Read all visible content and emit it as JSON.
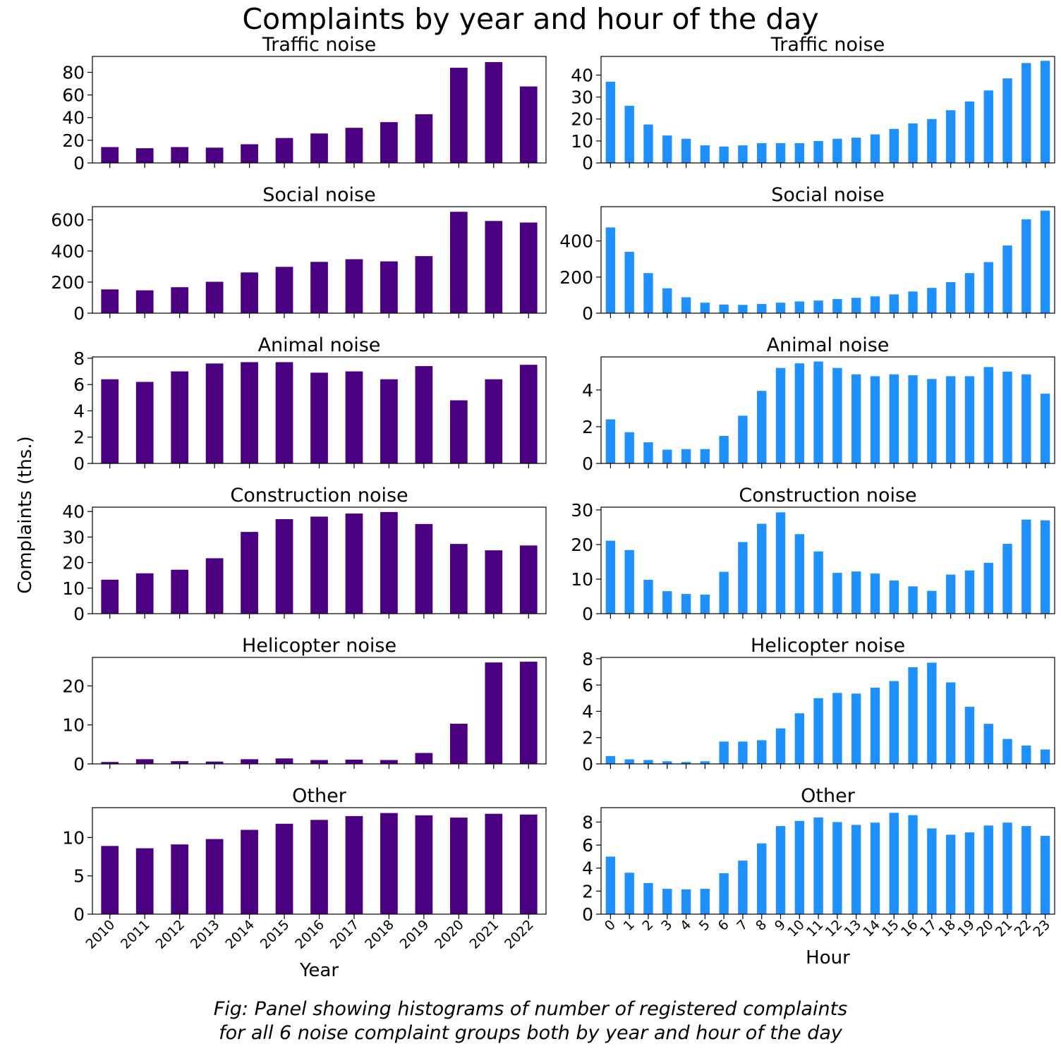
{
  "title": "Complaints by year and hour of the day",
  "ylabel": "Complaints (ths.)",
  "caption": {
    "line1": "Fig: Panel showing histograms of number of registered complaints",
    "line2": "for all 6 noise complaint groups both by year and hour of the day"
  },
  "colors": {
    "year": "#4b0082",
    "hour": "#1e90ff"
  },
  "chart_data": [
    {
      "type": "bar",
      "title": "Traffic noise",
      "column": "year",
      "ylim": [
        0,
        94
      ],
      "yticks": [
        0,
        20,
        40,
        60,
        80
      ],
      "categories": [
        "2010",
        "2011",
        "2012",
        "2013",
        "2014",
        "2015",
        "2016",
        "2017",
        "2018",
        "2019",
        "2020",
        "2021",
        "2022"
      ],
      "values": [
        14,
        13,
        14,
        13.5,
        16.5,
        22,
        26,
        31,
        36,
        43,
        84,
        89,
        67.5
      ]
    },
    {
      "type": "bar",
      "title": "Traffic noise",
      "column": "hour",
      "ylim": [
        0,
        48.5
      ],
      "yticks": [
        0,
        10,
        20,
        30,
        40
      ],
      "categories": [
        "0",
        "1",
        "2",
        "3",
        "4",
        "5",
        "6",
        "7",
        "8",
        "9",
        "10",
        "11",
        "12",
        "13",
        "14",
        "15",
        "16",
        "17",
        "18",
        "19",
        "20",
        "21",
        "22",
        "23"
      ],
      "values": [
        37,
        26,
        17.5,
        12.5,
        11,
        8,
        7.5,
        8,
        9,
        9,
        9,
        10,
        11,
        11.5,
        13,
        15.5,
        18,
        20,
        24,
        28,
        33,
        38.5,
        45.5,
        46.5
      ]
    },
    {
      "type": "bar",
      "title": "Social noise",
      "column": "year",
      "ylim": [
        0,
        685
      ],
      "yticks": [
        0,
        200,
        400,
        600
      ],
      "categories": [
        "2010",
        "2011",
        "2012",
        "2013",
        "2014",
        "2015",
        "2016",
        "2017",
        "2018",
        "2019",
        "2020",
        "2021",
        "2022"
      ],
      "values": [
        153,
        147,
        167,
        202,
        262,
        298,
        330,
        347,
        333,
        367,
        652,
        593,
        583
      ]
    },
    {
      "type": "bar",
      "title": "Social noise",
      "column": "hour",
      "ylim": [
        0,
        590
      ],
      "yticks": [
        0,
        200,
        400
      ],
      "categories": [
        "0",
        "1",
        "2",
        "3",
        "4",
        "5",
        "6",
        "7",
        "8",
        "9",
        "10",
        "11",
        "12",
        "13",
        "14",
        "15",
        "16",
        "17",
        "18",
        "19",
        "20",
        "21",
        "22",
        "23"
      ],
      "values": [
        475,
        340,
        222,
        138,
        88,
        58,
        48,
        46,
        51,
        58,
        65,
        70,
        78,
        85,
        93,
        104,
        120,
        140,
        172,
        222,
        283,
        375,
        520,
        568
      ]
    },
    {
      "type": "bar",
      "title": "Animal noise",
      "column": "year",
      "ylim": [
        0,
        8.1
      ],
      "yticks": [
        0,
        2,
        4,
        6,
        8
      ],
      "categories": [
        "2010",
        "2011",
        "2012",
        "2013",
        "2014",
        "2015",
        "2016",
        "2017",
        "2018",
        "2019",
        "2020",
        "2021",
        "2022"
      ],
      "values": [
        6.4,
        6.2,
        7.0,
        7.6,
        7.7,
        7.7,
        6.9,
        7.0,
        6.4,
        7.4,
        4.8,
        6.4,
        7.5
      ]
    },
    {
      "type": "bar",
      "title": "Animal noise",
      "column": "hour",
      "ylim": [
        0,
        5.8
      ],
      "yticks": [
        0,
        2,
        4
      ],
      "categories": [
        "0",
        "1",
        "2",
        "3",
        "4",
        "5",
        "6",
        "7",
        "8",
        "9",
        "10",
        "11",
        "12",
        "13",
        "14",
        "15",
        "16",
        "17",
        "18",
        "19",
        "20",
        "21",
        "22",
        "23"
      ],
      "values": [
        2.4,
        1.7,
        1.15,
        0.75,
        0.78,
        0.78,
        1.5,
        2.6,
        3.95,
        5.2,
        5.45,
        5.55,
        5.2,
        4.85,
        4.75,
        4.85,
        4.8,
        4.6,
        4.75,
        4.75,
        5.25,
        5.0,
        4.85,
        3.8
      ]
    },
    {
      "type": "bar",
      "title": "Construction noise",
      "column": "year",
      "ylim": [
        0,
        41.7
      ],
      "yticks": [
        0,
        10,
        20,
        30,
        40
      ],
      "categories": [
        "2010",
        "2011",
        "2012",
        "2013",
        "2014",
        "2015",
        "2016",
        "2017",
        "2018",
        "2019",
        "2020",
        "2021",
        "2022"
      ],
      "values": [
        13.3,
        15.8,
        17.2,
        21.7,
        32,
        37,
        38,
        39.2,
        39.8,
        35.1,
        27.3,
        24.8,
        26.7
      ]
    },
    {
      "type": "bar",
      "title": "Construction noise",
      "column": "hour",
      "ylim": [
        0,
        30.8
      ],
      "yticks": [
        0,
        10,
        20,
        30
      ],
      "categories": [
        "0",
        "1",
        "2",
        "3",
        "4",
        "5",
        "6",
        "7",
        "8",
        "9",
        "10",
        "11",
        "12",
        "13",
        "14",
        "15",
        "16",
        "17",
        "18",
        "19",
        "20",
        "21",
        "22",
        "23"
      ],
      "values": [
        21.1,
        18.4,
        9.8,
        6.5,
        5.7,
        5.5,
        12.1,
        20.7,
        26,
        29.3,
        23,
        18,
        11.8,
        12.2,
        11.6,
        9.6,
        7.9,
        6.6,
        11.3,
        12.5,
        14.7,
        20.2,
        27.2,
        27
      ]
    },
    {
      "type": "bar",
      "title": "Helicopter noise",
      "column": "year",
      "ylim": [
        0,
        27.3
      ],
      "yticks": [
        0,
        10,
        20
      ],
      "categories": [
        "2010",
        "2011",
        "2012",
        "2013",
        "2014",
        "2015",
        "2016",
        "2017",
        "2018",
        "2019",
        "2020",
        "2021",
        "2022"
      ],
      "values": [
        0.5,
        1.2,
        0.7,
        0.6,
        1.2,
        1.4,
        1.0,
        1.1,
        1.0,
        2.8,
        10.3,
        26,
        26.2
      ]
    },
    {
      "type": "bar",
      "title": "Helicopter noise",
      "column": "hour",
      "ylim": [
        0,
        8.1
      ],
      "yticks": [
        0,
        2,
        4,
        6,
        8
      ],
      "categories": [
        "0",
        "1",
        "2",
        "3",
        "4",
        "5",
        "6",
        "7",
        "8",
        "9",
        "10",
        "11",
        "12",
        "13",
        "14",
        "15",
        "16",
        "17",
        "18",
        "19",
        "20",
        "21",
        "22",
        "23"
      ],
      "values": [
        0.6,
        0.35,
        0.3,
        0.2,
        0.15,
        0.2,
        1.7,
        1.7,
        1.8,
        2.7,
        3.85,
        5.0,
        5.4,
        5.35,
        5.8,
        6.3,
        7.35,
        7.7,
        6.2,
        4.35,
        3.05,
        1.9,
        1.4,
        1.1
      ]
    },
    {
      "type": "bar",
      "title": "Other",
      "column": "year",
      "ylim": [
        0,
        13.9
      ],
      "yticks": [
        0,
        5,
        10
      ],
      "categories": [
        "2010",
        "2011",
        "2012",
        "2013",
        "2014",
        "2015",
        "2016",
        "2017",
        "2018",
        "2019",
        "2020",
        "2021",
        "2022"
      ],
      "values": [
        8.9,
        8.6,
        9.1,
        9.8,
        11.0,
        11.8,
        12.3,
        12.8,
        13.2,
        12.9,
        12.6,
        13.1,
        13.0
      ]
    },
    {
      "type": "bar",
      "title": "Other",
      "column": "hour",
      "ylim": [
        0,
        9.25
      ],
      "yticks": [
        0,
        2,
        4,
        6,
        8
      ],
      "categories": [
        "0",
        "1",
        "2",
        "3",
        "4",
        "5",
        "6",
        "7",
        "8",
        "9",
        "10",
        "11",
        "12",
        "13",
        "14",
        "15",
        "16",
        "17",
        "18",
        "19",
        "20",
        "21",
        "22",
        "23"
      ],
      "values": [
        5.0,
        3.6,
        2.7,
        2.2,
        2.15,
        2.2,
        3.55,
        4.65,
        6.15,
        7.65,
        8.1,
        8.4,
        8.0,
        7.75,
        7.95,
        8.8,
        8.6,
        7.45,
        6.9,
        7.1,
        7.7,
        7.95,
        7.65,
        6.8
      ]
    }
  ],
  "xlabels": {
    "year": "Year",
    "hour": "Hour"
  }
}
